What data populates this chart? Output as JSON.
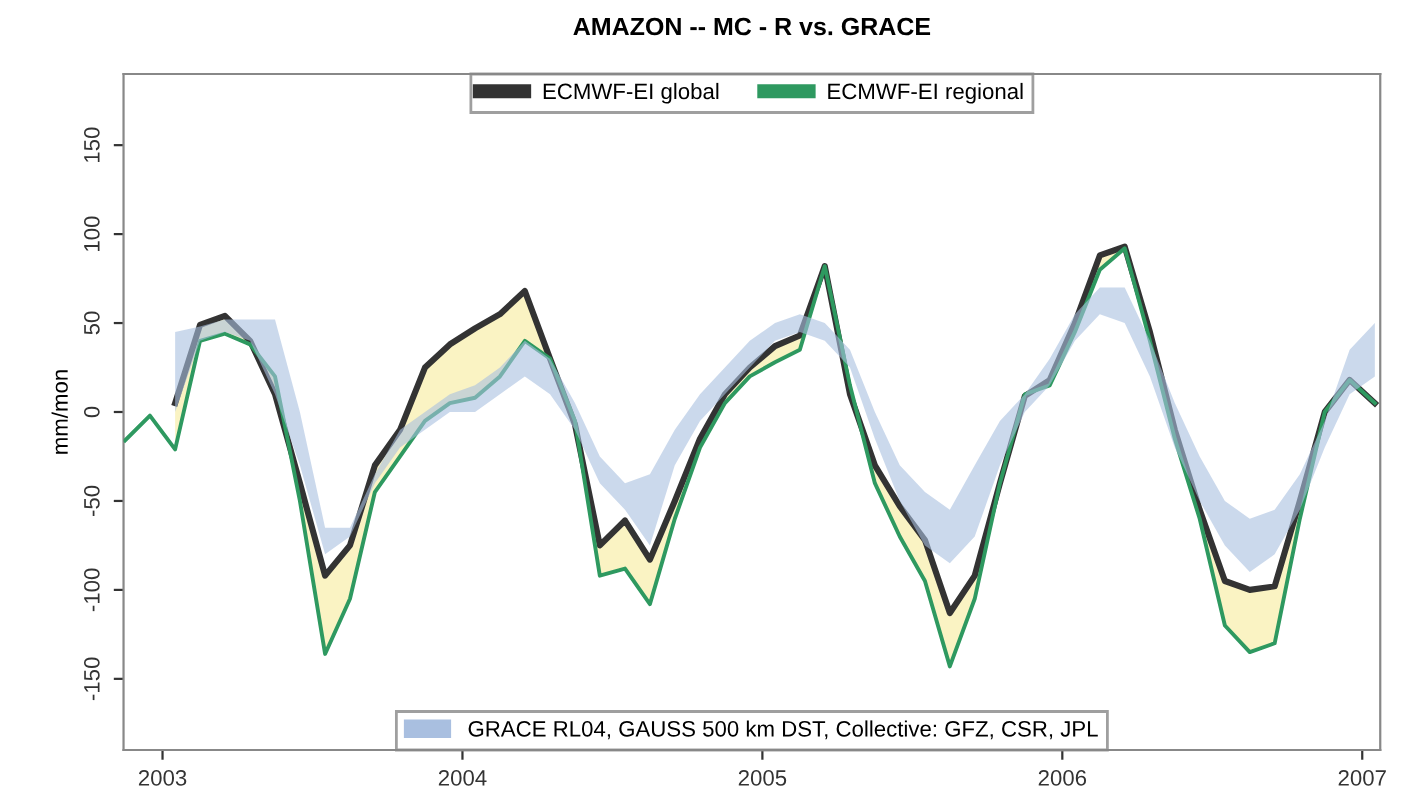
{
  "chart_data": {
    "type": "line",
    "title": "AMAZON -- MC - R vs. GRACE",
    "ylabel": "mm/mon",
    "xlim": [
      2002.87,
      2007.06
    ],
    "xticks": [
      2003,
      2004,
      2005,
      2006,
      2007
    ],
    "ylim": [
      -190,
      190
    ],
    "yticks": [
      -150,
      -100,
      -50,
      0,
      50,
      100,
      150
    ],
    "grid": false,
    "legend": "top",
    "marker": "none",
    "line_style": "solid",
    "series": [
      {
        "name": "GRACE RL04, GAUSS 500 km DST, Collective: GFZ, CSR, JPL",
        "type": "area",
        "color": "#a9bfe0",
        "x": [
          2003.042,
          2003.125,
          2003.208,
          2003.292,
          2003.375,
          2003.458,
          2003.542,
          2003.625,
          2003.708,
          2003.792,
          2003.875,
          2003.958,
          2004.042,
          2004.125,
          2004.208,
          2004.292,
          2004.375,
          2004.458,
          2004.542,
          2004.625,
          2004.708,
          2004.792,
          2004.875,
          2004.958,
          2005.042,
          2005.125,
          2005.208,
          2005.292,
          2005.375,
          2005.458,
          2005.542,
          2005.625,
          2005.708,
          2005.792,
          2005.875,
          2005.958,
          2006.042,
          2006.125,
          2006.208,
          2006.292,
          2006.375,
          2006.458,
          2006.542,
          2006.625,
          2006.708,
          2006.792,
          2006.875,
          2006.958,
          2007.042
        ],
        "values": [
          null,
          null,
          null,
          null,
          null,
          null,
          null,
          null,
          null,
          null,
          null,
          null,
          null,
          null,
          null,
          null,
          null,
          null,
          null,
          null,
          null,
          null,
          null,
          null,
          null,
          null,
          null,
          null,
          null,
          null,
          null,
          null,
          null,
          null,
          null,
          null,
          null,
          null,
          null,
          null,
          null,
          null,
          null,
          null,
          null,
          null,
          null,
          null,
          null
        ],
        "lower": [
          0,
          40,
          45,
          40,
          10,
          -30,
          -80,
          -70,
          -40,
          -20,
          -10,
          0,
          0,
          10,
          20,
          10,
          -10,
          -40,
          -55,
          -75,
          -30,
          -5,
          10,
          25,
          40,
          45,
          40,
          25,
          -15,
          -50,
          -75,
          -85,
          -70,
          -30,
          0,
          15,
          40,
          55,
          50,
          20,
          -20,
          -50,
          -75,
          -90,
          -80,
          -55,
          -20,
          10,
          20
        ],
        "upper": [
          45,
          48,
          52,
          52,
          52,
          0,
          -65,
          -65,
          -35,
          -10,
          0,
          10,
          15,
          25,
          40,
          30,
          5,
          -25,
          -40,
          -35,
          -10,
          10,
          25,
          40,
          50,
          55,
          50,
          35,
          0,
          -30,
          -45,
          -55,
          -30,
          -5,
          10,
          30,
          55,
          70,
          70,
          40,
          5,
          -25,
          -50,
          -60,
          -55,
          -35,
          -5,
          35,
          50
        ]
      },
      {
        "name": "ECMWF-EI global",
        "color": "#333333",
        "x": [
          2003.042,
          2003.125,
          2003.208,
          2003.292,
          2003.375,
          2003.458,
          2003.542,
          2003.625,
          2003.708,
          2003.792,
          2003.875,
          2003.958,
          2004.042,
          2004.125,
          2004.208,
          2004.292,
          2004.375,
          2004.458,
          2004.542,
          2004.625,
          2004.708,
          2004.792,
          2004.875,
          2004.958,
          2005.042,
          2005.125,
          2005.208,
          2005.292,
          2005.375,
          2005.458,
          2005.542,
          2005.625,
          2005.708,
          2005.792,
          2005.875,
          2005.958,
          2006.042,
          2006.125,
          2006.208,
          2006.292,
          2006.375,
          2006.458,
          2006.542,
          2006.625,
          2006.708,
          2006.792,
          2006.875,
          2006.958,
          2007.042
        ],
        "values": [
          5,
          49,
          54,
          40,
          10,
          -40,
          -92,
          -75,
          -30,
          -10,
          25,
          38,
          47,
          55,
          68,
          30,
          -7,
          -75,
          -61,
          -83,
          -50,
          -15,
          10,
          25,
          37,
          43,
          82,
          10,
          -30,
          -53,
          -72,
          -113,
          -92,
          -40,
          9,
          18,
          50,
          88,
          93,
          45,
          -10,
          -55,
          -95,
          -100,
          -98,
          -50,
          0,
          18,
          5
        ]
      },
      {
        "name": "ECMWF-EI regional",
        "color": "#2e9960",
        "x": [
          2002.875,
          2002.958,
          2003.042,
          2003.125,
          2003.208,
          2003.292,
          2003.375,
          2003.458,
          2003.542,
          2003.625,
          2003.708,
          2003.792,
          2003.875,
          2003.958,
          2004.042,
          2004.125,
          2004.208,
          2004.292,
          2004.375,
          2004.458,
          2004.542,
          2004.625,
          2004.708,
          2004.792,
          2004.875,
          2004.958,
          2005.042,
          2005.125,
          2005.208,
          2005.292,
          2005.375,
          2005.458,
          2005.542,
          2005.625,
          2005.708,
          2005.792,
          2005.875,
          2005.958,
          2006.042,
          2006.125,
          2006.208,
          2006.292,
          2006.375,
          2006.458,
          2006.542,
          2006.625,
          2006.708,
          2006.792,
          2006.875,
          2006.958,
          2007.042
        ],
        "values": [
          -16,
          -2,
          -21,
          40,
          44,
          38,
          20,
          -50,
          -136,
          -105,
          -45,
          -25,
          -5,
          5,
          8,
          20,
          40,
          30,
          -5,
          -92,
          -88,
          -108,
          -60,
          -20,
          5,
          20,
          28,
          35,
          82,
          15,
          -40,
          -70,
          -95,
          -143,
          -105,
          -40,
          10,
          15,
          45,
          80,
          92,
          40,
          -15,
          -60,
          -120,
          -135,
          -130,
          -60,
          0,
          18,
          5
        ]
      }
    ]
  }
}
